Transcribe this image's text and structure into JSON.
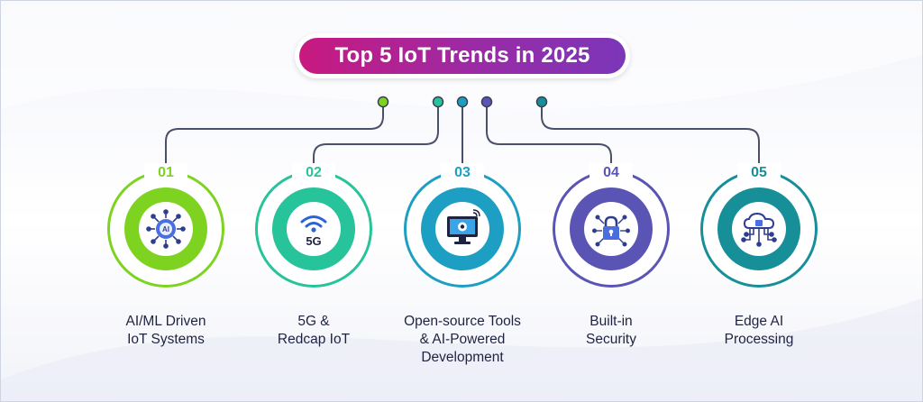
{
  "title": "Top 5 IoT Trends in 2025",
  "trends": [
    {
      "number": "01",
      "lines": [
        "AI/ML Driven",
        "IoT Systems"
      ],
      "color": "#7ed321",
      "icon": "ai-chip-icon"
    },
    {
      "number": "02",
      "lines": [
        "5G &",
        "Redcap IoT"
      ],
      "color": "#27c39a",
      "icon": "5g-wifi-icon"
    },
    {
      "number": "03",
      "lines": [
        "Open-source Tools",
        "& AI-Powered",
        "Development"
      ],
      "color": "#1d9fc4",
      "icon": "monitor-gear-icon"
    },
    {
      "number": "04",
      "lines": [
        "Built-in",
        "Security"
      ],
      "color": "#5a55b4",
      "icon": "padlock-circuit-icon"
    },
    {
      "number": "05",
      "lines": [
        "Edge AI",
        "Processing"
      ],
      "color": "#178f98",
      "icon": "cloud-chip-icon"
    }
  ],
  "icon_5g_text": "5G",
  "ai_chip_text": "AI"
}
